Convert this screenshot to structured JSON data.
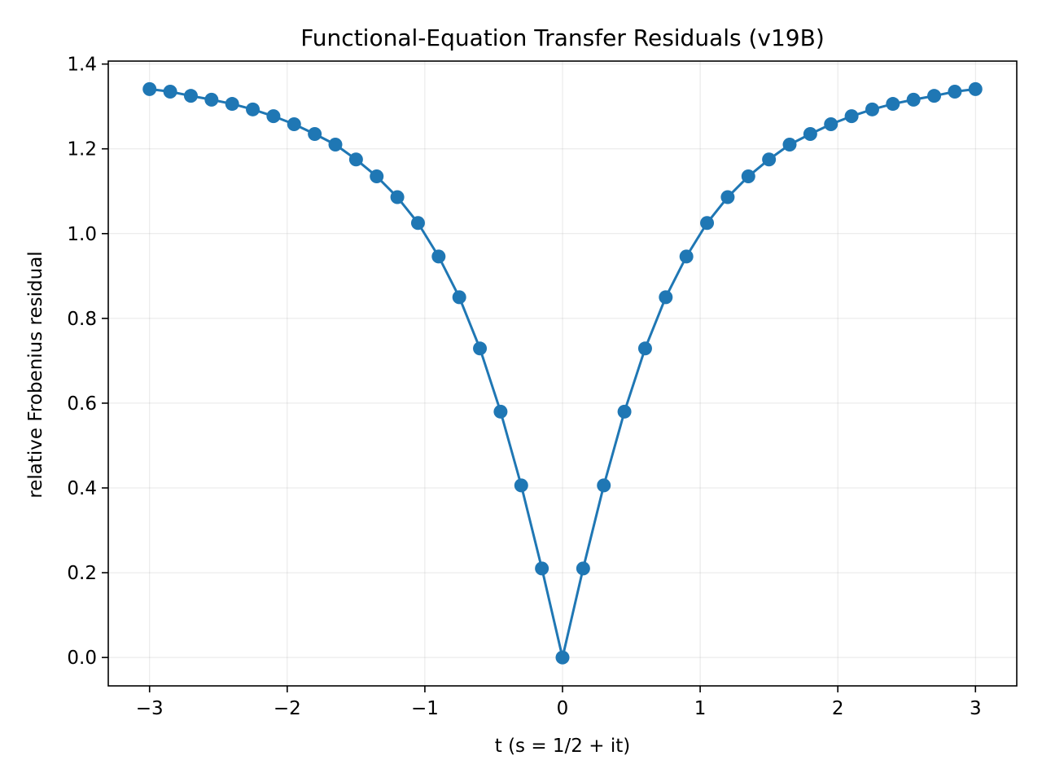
{
  "chart_data": {
    "type": "line",
    "title": "Functional-Equation Transfer Residuals (v19B)",
    "xlabel": "t (s = 1/2 + it)",
    "ylabel": "relative Frobenius residual",
    "xlim": [
      -3.3,
      3.3
    ],
    "ylim": [
      -0.067,
      1.407
    ],
    "xticks": [
      -3,
      -2,
      -1,
      0,
      1,
      2,
      3
    ],
    "xtick_labels": [
      "−3",
      "−2",
      "−1",
      "0",
      "1",
      "2",
      "3"
    ],
    "yticks": [
      0.0,
      0.2,
      0.4,
      0.6,
      0.8,
      1.0,
      1.2,
      1.4
    ],
    "ytick_labels": [
      "0.0",
      "0.2",
      "0.4",
      "0.6",
      "0.8",
      "1.0",
      "1.2",
      "1.4"
    ],
    "grid": true,
    "legend": "none",
    "color": "#1f77b4",
    "marker": "circle",
    "series": [
      {
        "x": [
          -3.0,
          -2.85,
          -2.7,
          -2.55,
          -2.4,
          -2.25,
          -2.1,
          -1.95,
          -1.8,
          -1.65,
          -1.5,
          -1.35,
          -1.2,
          -1.05,
          -0.9,
          -0.75,
          -0.6,
          -0.45,
          -0.3,
          -0.15,
          0.0,
          0.15,
          0.3,
          0.45,
          0.6,
          0.75,
          0.9,
          1.05,
          1.2,
          1.35,
          1.5,
          1.65,
          1.8,
          1.95,
          2.1,
          2.25,
          2.4,
          2.55,
          2.7,
          2.85,
          3.0
        ],
        "y": [
          1.341,
          1.335,
          1.325,
          1.316,
          1.306,
          1.293,
          1.277,
          1.258,
          1.235,
          1.21,
          1.175,
          1.135,
          1.086,
          1.025,
          0.946,
          0.85,
          0.729,
          0.58,
          0.406,
          0.21,
          0.0,
          0.21,
          0.406,
          0.58,
          0.729,
          0.85,
          0.946,
          1.025,
          1.086,
          1.135,
          1.175,
          1.21,
          1.235,
          1.258,
          1.277,
          1.293,
          1.306,
          1.316,
          1.325,
          1.335,
          1.341
        ]
      }
    ]
  }
}
